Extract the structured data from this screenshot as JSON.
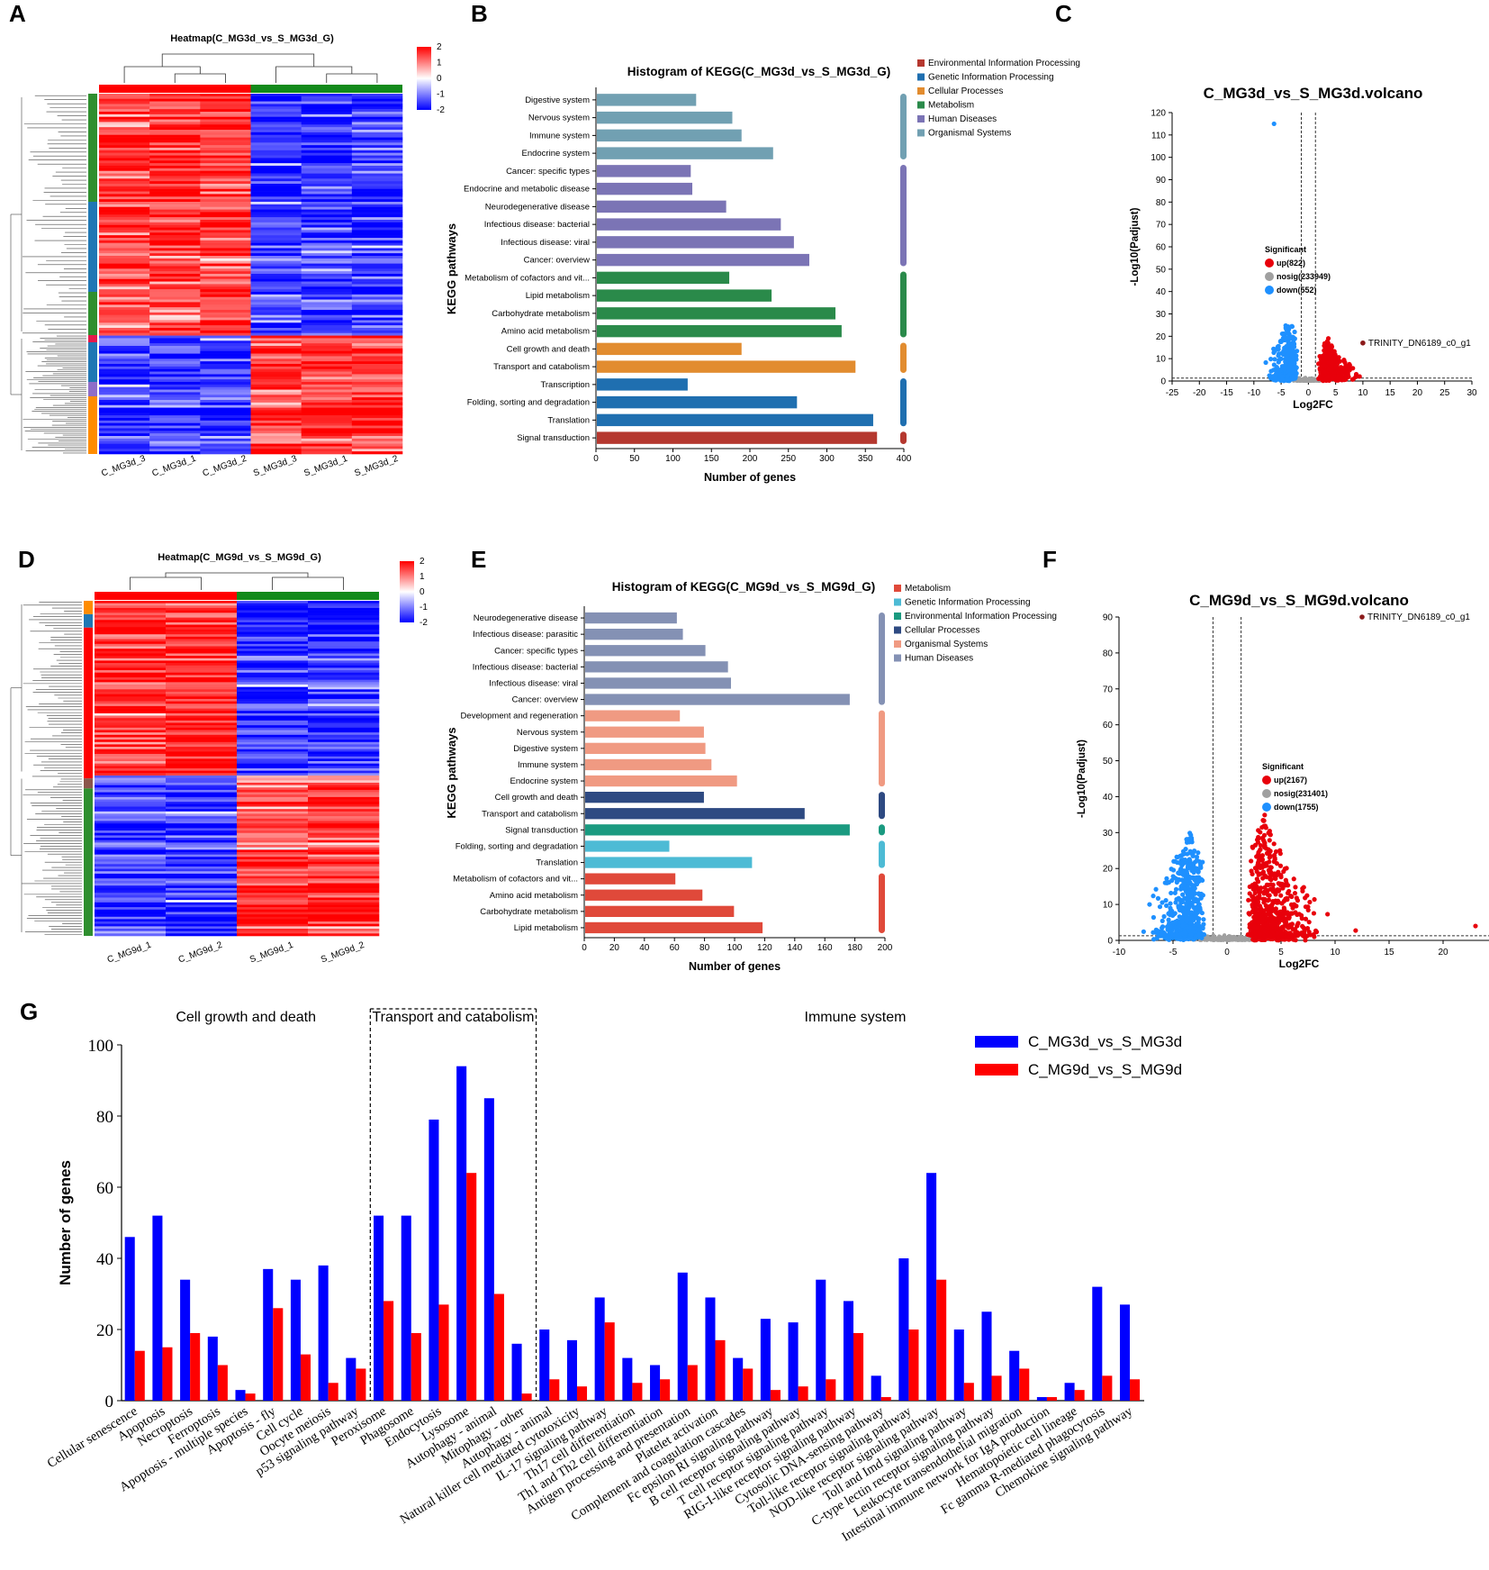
{
  "panels": {
    "A": {
      "letter": "A",
      "title": "Heatmap(C_MG3d_vs_S_MG3d_G)",
      "samples": [
        "C_MG3d_3",
        "C_MG3d_1",
        "C_MG3d_2",
        "S_MG3d_3",
        "S_MG3d_1",
        "S_MG3d_2"
      ],
      "scale_ticks": [
        "2",
        "1",
        "0",
        "-1",
        "-2"
      ]
    },
    "D": {
      "letter": "D",
      "title": "Heatmap(C_MG9d_vs_S_MG9d_G)",
      "samples": [
        "C_MG9d_1",
        "C_MG9d_2",
        "S_MG9d_1",
        "S_MG9d_2"
      ],
      "scale_ticks": [
        "2",
        "1",
        "0",
        "-1",
        "-2"
      ]
    },
    "B": {
      "letter": "B"
    },
    "E": {
      "letter": "E"
    },
    "C": {
      "letter": "C"
    },
    "F": {
      "letter": "F"
    },
    "G": {
      "letter": "G"
    }
  },
  "colors": {
    "heat_high": "#ff0000",
    "heat_low": "#0000ff",
    "up": "#e8000b",
    "down": "#1e90ff",
    "nosig": "#a0a0a0",
    "g_series1": "#0000ff",
    "g_series2": "#ff0000"
  },
  "chart_data": [
    {
      "id": "B",
      "type": "bar",
      "orientation": "horizontal",
      "title": "Histogram of KEGG(C_MG3d_vs_S_MG3d_G)",
      "xlabel": "Number of genes",
      "ylabel": "KEGG pathways",
      "xlim": [
        0,
        400
      ],
      "xticks": [
        0,
        50,
        100,
        150,
        200,
        250,
        300,
        350,
        400
      ],
      "categories": [
        "Digestive system",
        "Nervous system",
        "Immune system",
        "Endocrine system",
        "Cancer: specific types",
        "Endocrine and metabolic disease",
        "Neurodegenerative disease",
        "Infectious disease: bacterial",
        "Infectious disease: viral",
        "Cancer: overview",
        "Metabolism of cofactors and vit...",
        "Lipid metabolism",
        "Carbohydrate metabolism",
        "Amino acid metabolism",
        "Cell growth and death",
        "Transport and catabolism",
        "Transcription",
        "Folding, sorting and degradation",
        "Translation",
        "Signal transduction"
      ],
      "values": [
        129,
        176,
        188,
        229,
        122,
        124,
        168,
        239,
        256,
        276,
        172,
        227,
        310,
        318,
        188,
        336,
        118,
        260,
        359,
        364
      ],
      "groups": [
        5,
        5,
        5,
        5,
        4,
        4,
        4,
        4,
        4,
        4,
        3,
        3,
        3,
        3,
        2,
        2,
        1,
        1,
        1,
        0
      ],
      "legend": [
        "Environmental Information Processing",
        "Genetic Information Processing",
        "Cellular Processes",
        "Metabolism",
        "Human Diseases",
        "Organismal Systems"
      ],
      "legend_colors": [
        "#b5382f",
        "#1f6fb0",
        "#e28c2f",
        "#2a8a4a",
        "#7b74b5",
        "#71a0b2"
      ]
    },
    {
      "id": "E",
      "type": "bar",
      "orientation": "horizontal",
      "title": "Histogram of KEGG(C_MG9d_vs_S_MG9d_G)",
      "xlabel": "Number of genes",
      "ylabel": "KEGG pathways",
      "xlim": [
        0,
        200
      ],
      "xticks": [
        0,
        20,
        40,
        60,
        80,
        100,
        120,
        140,
        160,
        180,
        200
      ],
      "categories": [
        "Neurodegenerative disease",
        "Infectious disease: parasitic",
        "Cancer: specific types",
        "Infectious disease: bacterial",
        "Infectious disease: viral",
        "Cancer: overview",
        "Development and regeneration",
        "Nervous system",
        "Digestive system",
        "Immune system",
        "Endocrine system",
        "Cell growth and death",
        "Transport and catabolism",
        "Signal transduction",
        "Folding, sorting and degradation",
        "Translation",
        "Metabolism of cofactors and vit...",
        "Amino acid metabolism",
        "Carbohydrate metabolism",
        "Lipid metabolism"
      ],
      "values": [
        61,
        65,
        80,
        95,
        97,
        176,
        63,
        79,
        80,
        84,
        101,
        79,
        146,
        176,
        56,
        111,
        60,
        78,
        99,
        118
      ],
      "groups": [
        5,
        5,
        5,
        5,
        5,
        5,
        4,
        4,
        4,
        4,
        4,
        3,
        3,
        2,
        1,
        1,
        0,
        0,
        0,
        0
      ],
      "legend": [
        "Metabolism",
        "Genetic Information Processing",
        "Environmental Information Processing",
        "Cellular Processes",
        "Organismal Systems",
        "Human Diseases"
      ],
      "legend_colors": [
        "#e0493a",
        "#4dbbd5",
        "#1a9a80",
        "#2e4a82",
        "#f09a82",
        "#8491b4"
      ]
    },
    {
      "id": "C",
      "type": "scatter",
      "subtype": "volcano",
      "title": "C_MG3d_vs_S_MG3d.volcano",
      "xlabel": "Log2FC",
      "ylabel": "-Log10(Padjust)",
      "xlim": [
        -25,
        30
      ],
      "xticks": [
        -25,
        -20,
        -15,
        -10,
        -5,
        0,
        5,
        10,
        15,
        20,
        25,
        30
      ],
      "ylim": [
        0,
        120
      ],
      "yticks": [
        0,
        10,
        20,
        30,
        40,
        50,
        60,
        70,
        80,
        90,
        100,
        110,
        120
      ],
      "thresholds": {
        "fc": [
          -1,
          1
        ],
        "padj": 1.3
      },
      "legend_title": "Significant",
      "legend": [
        "up(822)",
        "nosig(233949)",
        "down(552)"
      ],
      "annotation": {
        "label": "TRINITY_DN6189_c0_g1",
        "x": 10,
        "y": 17
      },
      "outlier": {
        "x": -6.3,
        "y": 115
      }
    },
    {
      "id": "F",
      "type": "scatter",
      "subtype": "volcano",
      "title": "C_MG9d_vs_S_MG9d.volcano",
      "xlabel": "Log2FC",
      "ylabel": "-Log10(Padjust)",
      "xlim": [
        -10,
        25
      ],
      "xticks": [
        -10,
        -5,
        0,
        5,
        10,
        15,
        20,
        25
      ],
      "ylim": [
        0,
        90
      ],
      "yticks": [
        0,
        10,
        20,
        30,
        40,
        50,
        60,
        70,
        80,
        90
      ],
      "thresholds": {
        "fc": [
          -1,
          1
        ],
        "padj": 1.3
      },
      "legend_title": "Significant",
      "legend": [
        "up(2167)",
        "nosig(231401)",
        "down(1755)"
      ],
      "annotation": {
        "label": "TRINITY_DN6189_c0_g1",
        "x": 12.5,
        "y": 90
      },
      "outlier": {
        "x": 23,
        "y": 4
      }
    },
    {
      "id": "G",
      "type": "bar",
      "orientation": "vertical",
      "ylabel": "Number of genes",
      "ylim": [
        0,
        100
      ],
      "yticks": [
        0,
        20,
        40,
        60,
        80,
        100
      ],
      "sections": [
        {
          "label": "Cell growth and death",
          "start": 0,
          "end": 8
        },
        {
          "label": "Transport and catabolism",
          "start": 9,
          "end": 14
        },
        {
          "label": "Immune system",
          "start": 15,
          "end": 36
        }
      ],
      "categories": [
        "Cellular senescence",
        "Apoptosis",
        "Necroptosis",
        "Ferroptosis",
        "Apoptosis - multiple species",
        "Apoptosis - fly",
        "Cell cycle",
        "Oocyte meiosis",
        "p53 signaling pathway",
        "Peroxisome",
        "Phagosome",
        "Endocytosis",
        "Lysosome",
        "Autophagy - animal",
        "Mitophagy - other",
        "Autophagy - animal",
        "Natural killer cell mediated cytotoxicity",
        "IL-17 signaling pathway",
        "Th17 cell differentiation",
        "Th1 and Th2 cell differentiation",
        "Antigen processing and presentation",
        "Platelet activation",
        "Complement and coagulation cascades",
        "Fc epsilon RI signaling pathway",
        "B cell receptor signaling pathway",
        "T cell receptor signaling pathway",
        "RIG-I-like receptor signaling pathway",
        "Cytosolic DNA-sensing pathway",
        "Toll-like receptor signaling pathway",
        "NOD-like receptor signaling pathway",
        "Toll and Imd signaling pathway",
        "C-type lectin receptor signaling pathway",
        "Leukocyte transendothelial migration",
        "Intestinal immune network for IgA production",
        "Hematopoietic cell lineage",
        "Fc gamma R-mediated phagocytosis",
        "Chemokine signaling pathway"
      ],
      "series": [
        {
          "name": "C_MG3d_vs_S_MG3d",
          "values": [
            46,
            52,
            34,
            18,
            3,
            37,
            34,
            38,
            12,
            52,
            52,
            79,
            94,
            85,
            16,
            20,
            17,
            29,
            12,
            10,
            36,
            29,
            12,
            23,
            22,
            34,
            28,
            7,
            40,
            64,
            20,
            25,
            14,
            1,
            5,
            32,
            27
          ]
        },
        {
          "name": "C_MG9d_vs_S_MG9d",
          "values": [
            14,
            15,
            19,
            10,
            2,
            26,
            13,
            5,
            9,
            28,
            19,
            27,
            64,
            30,
            2,
            6,
            4,
            22,
            5,
            6,
            10,
            17,
            9,
            3,
            4,
            6,
            19,
            1,
            20,
            34,
            5,
            7,
            9,
            1,
            3,
            7,
            6
          ]
        }
      ]
    }
  ]
}
